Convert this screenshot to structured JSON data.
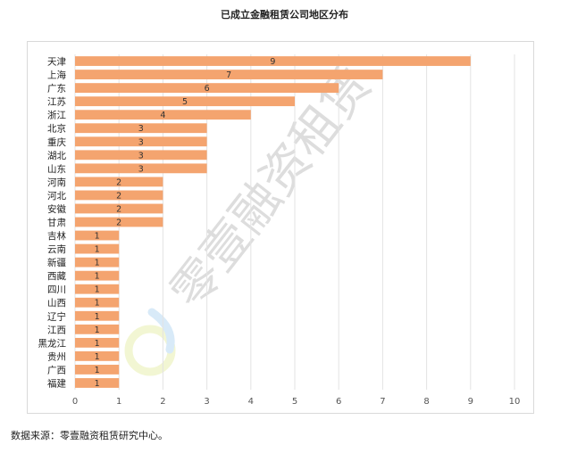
{
  "chart_data": {
    "type": "bar",
    "orientation": "horizontal",
    "title": "已成立金融租赁公司地区分布",
    "categories": [
      "天津",
      "上海",
      "广东",
      "江苏",
      "浙江",
      "北京",
      "重庆",
      "湖北",
      "山东",
      "河南",
      "河北",
      "安徽",
      "甘肃",
      "吉林",
      "云南",
      "新疆",
      "西藏",
      "四川",
      "山西",
      "辽宁",
      "江西",
      "黑龙江",
      "贵州",
      "广西",
      "福建"
    ],
    "values": [
      9,
      7,
      6,
      5,
      4,
      3,
      3,
      3,
      3,
      2,
      2,
      2,
      2,
      1,
      1,
      1,
      1,
      1,
      1,
      1,
      1,
      1,
      1,
      1,
      1
    ],
    "xlim": [
      0,
      10
    ],
    "xticks": [
      0,
      1,
      2,
      3,
      4,
      5,
      6,
      7,
      8,
      9,
      10
    ],
    "bar_color": "#f4a46f",
    "grid": true,
    "xlabel": "",
    "ylabel": ""
  },
  "watermark": "零壹融资租赁",
  "source_note": "数据来源：零壹融资租赁研究中心。"
}
